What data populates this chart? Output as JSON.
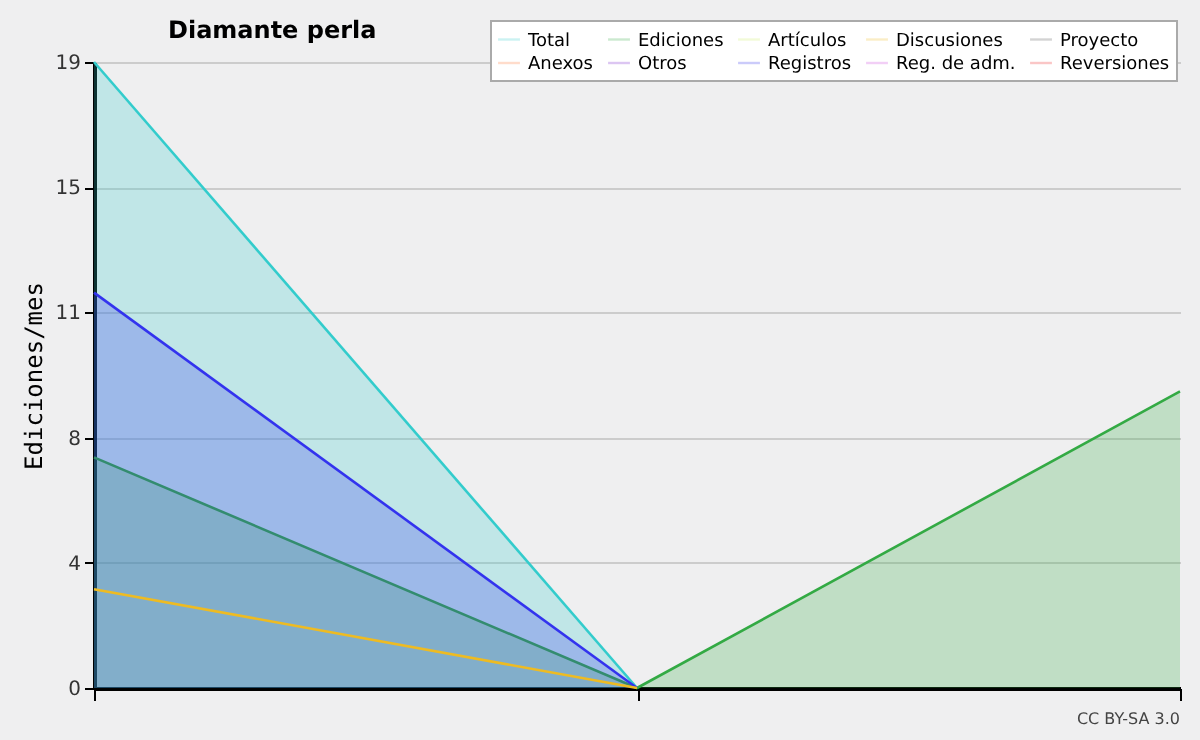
{
  "chart_data": {
    "type": "area",
    "title": "Diamante perla",
    "ylabel": "Ediciones/mes",
    "categories": [
      null,
      null,
      null
    ],
    "ylim": [
      0,
      19
    ],
    "yticks": [
      0,
      {
        "value": 3.8,
        "label": "4"
      },
      {
        "value": 7.6,
        "label": "8"
      },
      {
        "value": 11.4,
        "label": "11"
      },
      {
        "value": 15.2,
        "label": "15"
      },
      19
    ],
    "grid": "y",
    "legend": "top right",
    "marker": "none",
    "annotations": [
      "CC BY-SA 3.0"
    ],
    "series": [
      {
        "name": "Total",
        "color": "#33cccc",
        "values": [
          19,
          0,
          null
        ]
      },
      {
        "name": "Ediciones",
        "color": "#33aa44",
        "values": [
          7,
          0,
          9
        ]
      },
      {
        "name": "Artículos",
        "color": "#ccee66",
        "type": "line",
        "values": [
          null,
          null,
          null
        ]
      },
      {
        "name": "Discusiones",
        "color": "#eebb22",
        "type": "line",
        "values": [
          3,
          0,
          null
        ]
      },
      {
        "name": "Proyecto",
        "color": "#555555",
        "type": "line",
        "values": [
          null,
          null,
          null
        ]
      },
      {
        "name": "Anexos",
        "color": "#ff7733",
        "type": "line",
        "values": [
          null,
          null,
          null
        ]
      },
      {
        "name": "Otros",
        "color": "#7722cc",
        "type": "line",
        "values": [
          null,
          null,
          null
        ]
      },
      {
        "name": "Registros",
        "color": "#3333ee",
        "values": [
          12,
          0,
          null
        ]
      },
      {
        "name": "Reg. de adm.",
        "color": "#cc44dd",
        "type": "line",
        "values": [
          null,
          null,
          null
        ]
      },
      {
        "name": "Reversiones",
        "color": "#ee2222",
        "type": "line",
        "values": [
          null,
          null,
          null
        ]
      }
    ]
  }
}
